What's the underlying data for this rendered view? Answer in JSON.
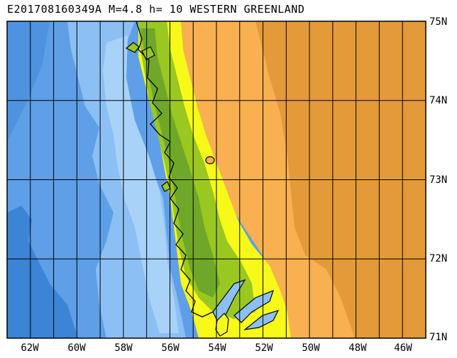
{
  "title": "E201708160349A M=4.8 h= 10 WESTERN GREENLAND",
  "lon_labels": [
    "62W",
    "60W",
    "58W",
    "56W",
    "54W",
    "52W",
    "50W",
    "48W",
    "46W"
  ],
  "lat_labels": [
    "75N",
    "74N",
    "73N",
    "72N",
    "71N"
  ],
  "map": {
    "lon_range": [
      -63,
      -45
    ],
    "lat_range": [
      71,
      75
    ],
    "grid_lon": [
      -62,
      -61,
      -60,
      -59,
      -58,
      -57,
      -56,
      -55,
      -54,
      -53,
      -52,
      -51,
      -50,
      -49,
      -48,
      -47,
      -46
    ],
    "grid_lat": [
      72,
      73,
      74
    ],
    "colors": {
      "deep_ocean": "#3b84d6",
      "ocean": "#5f9fe8",
      "shallow_ocean": "#8cc0f5",
      "shelf": "#a8d2f8",
      "lowland": "#e8f020",
      "coastal": "#f7fa18",
      "green": "#9ac820",
      "dark_green": "#6fa828",
      "ice_light": "#f8b050",
      "ice_dark": "#e49a38",
      "grid": "#000000"
    }
  }
}
